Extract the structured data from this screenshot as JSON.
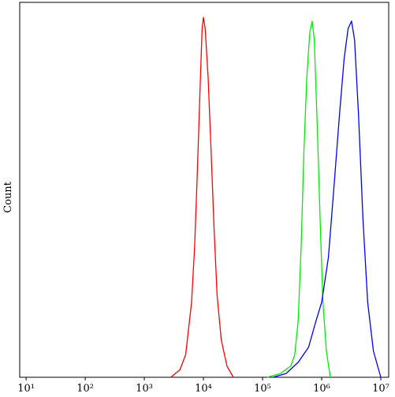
{
  "chart_data": {
    "type": "line",
    "y_label": "Count",
    "x_log": true,
    "xlim": [
      7.8,
      13600000
    ],
    "ylim": [
      0,
      100
    ],
    "xticks": [
      {
        "value": 10,
        "label": "10¹"
      },
      {
        "value": 100,
        "label": "10²"
      },
      {
        "value": 1000,
        "label": "10³"
      },
      {
        "value": 10000,
        "label": "10⁴"
      },
      {
        "value": 100000,
        "label": "10⁵"
      },
      {
        "value": 1000000,
        "label": "10⁶"
      },
      {
        "value": 10000000,
        "label": "10⁷"
      }
    ],
    "series": [
      {
        "color": "#ff0000",
        "x": [
          2800,
          4000,
          5000,
          6300,
          7100,
          7900,
          8900,
          9500,
          10000,
          10700,
          12000,
          13500,
          15100,
          17000,
          20000,
          25000,
          32000
        ],
        "values": [
          0,
          2,
          6,
          20,
          35,
          55,
          80,
          93,
          96,
          93,
          80,
          60,
          40,
          22,
          10,
          3,
          0
        ]
      },
      {
        "color": "#00ee00",
        "x": [
          120000,
          200000,
          300000,
          350000,
          400000,
          450000,
          500000,
          560000,
          630000,
          690000,
          750000,
          850000,
          950000,
          1050000,
          1200000,
          1400000
        ],
        "values": [
          0,
          1,
          3,
          6,
          15,
          35,
          60,
          80,
          92,
          95,
          90,
          65,
          40,
          20,
          7,
          0
        ]
      },
      {
        "color": "#0000ff",
        "x": [
          150000,
          250000,
          400000,
          600000,
          800000,
          1000000,
          1300000,
          1600000,
          2000000,
          2400000,
          2800000,
          3200000,
          3600000,
          4200000,
          5000000,
          6000000,
          7500000,
          10000000
        ],
        "values": [
          0,
          1,
          4,
          8,
          15,
          20,
          32,
          50,
          70,
          85,
          93,
          95,
          90,
          70,
          42,
          20,
          7,
          0
        ]
      }
    ]
  }
}
